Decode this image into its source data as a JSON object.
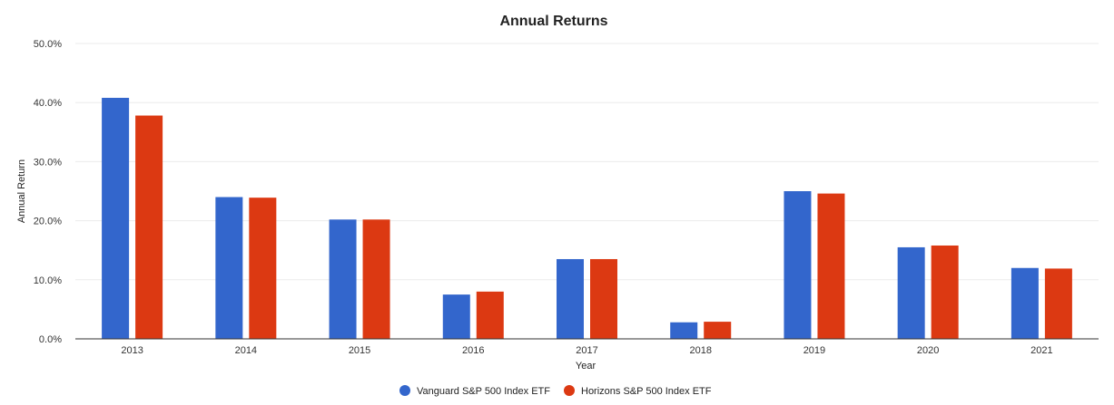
{
  "chart_data": {
    "type": "bar",
    "title": "Annual Returns",
    "xlabel": "Year",
    "ylabel": "Annual Return",
    "categories": [
      "2013",
      "2014",
      "2015",
      "2016",
      "2017",
      "2018",
      "2019",
      "2020",
      "2021"
    ],
    "series": [
      {
        "name": "Vanguard S&P 500 Index ETF",
        "color": "#3366cc",
        "values": [
          40.8,
          24.0,
          20.2,
          7.5,
          13.5,
          2.8,
          25.0,
          15.5,
          12.0
        ]
      },
      {
        "name": "Horizons S&P 500 Index ETF",
        "color": "#dc3912",
        "values": [
          37.8,
          23.9,
          20.2,
          8.0,
          13.5,
          2.9,
          24.6,
          15.8,
          11.9
        ]
      }
    ],
    "ylim": [
      0,
      50
    ],
    "yticks": [
      0,
      10,
      20,
      30,
      40,
      50
    ],
    "ytick_labels": [
      "0.0%",
      "10.0%",
      "20.0%",
      "30.0%",
      "40.0%",
      "50.0%"
    ],
    "grid": true,
    "legend_position": "bottom"
  }
}
